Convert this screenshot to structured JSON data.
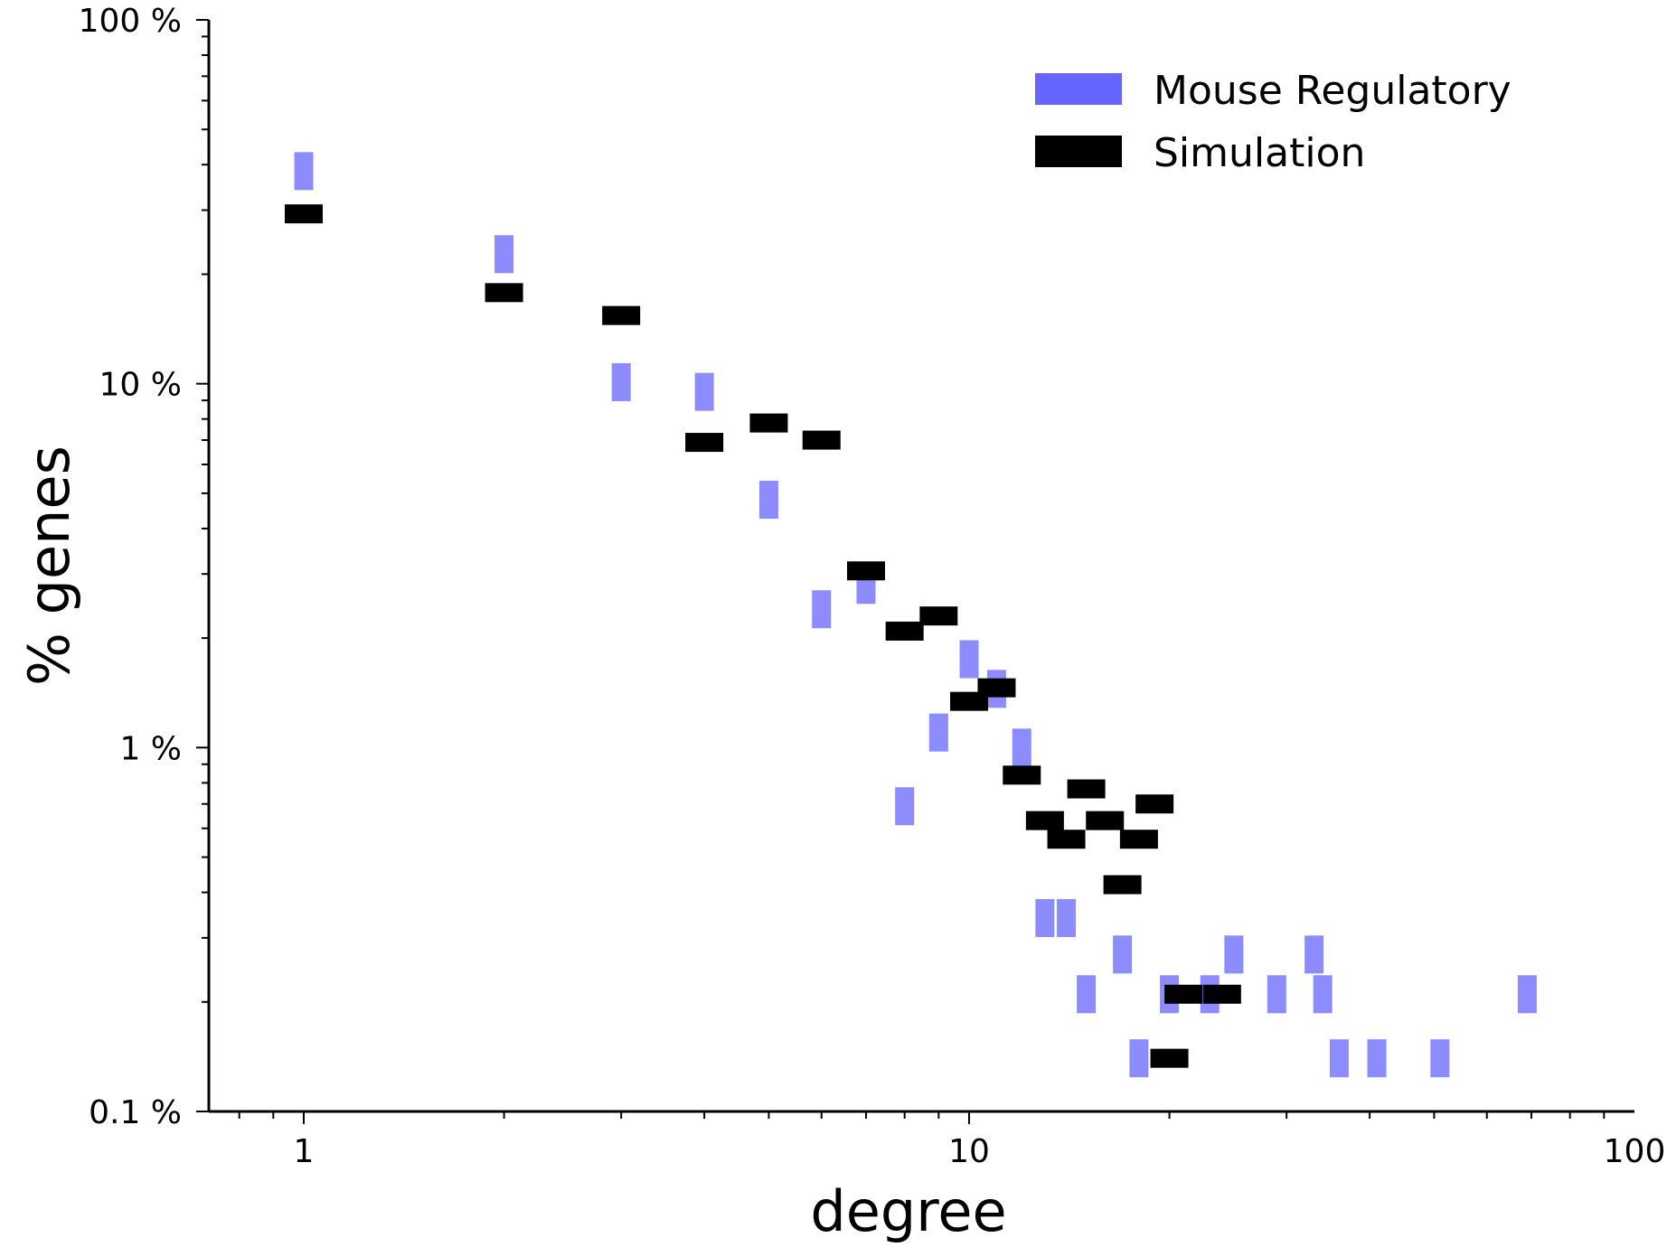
{
  "chart_data": {
    "type": "scatter",
    "title": "",
    "xlabel": "degree",
    "ylabel": "% genes",
    "xscale": "log",
    "yscale": "log",
    "xlim": [
      0.72,
      100
    ],
    "ylim": [
      0.1,
      100
    ],
    "grid": false,
    "legend_position": "top-right",
    "x_ticks": [
      {
        "value": 1,
        "label": "1"
      },
      {
        "value": 10,
        "label": "10"
      },
      {
        "value": 100,
        "label": "100"
      }
    ],
    "y_ticks": [
      {
        "value": 0.1,
        "label": "0.1 %"
      },
      {
        "value": 1,
        "label": "1 %"
      },
      {
        "value": 10,
        "label": "10 %"
      },
      {
        "value": 100,
        "label": "100 %"
      }
    ],
    "series": [
      {
        "name": "Mouse Regulatory",
        "color": "#6666ff",
        "marker": "vertical-bar",
        "points": [
          {
            "x": 1,
            "y": 38.4
          },
          {
            "x": 2,
            "y": 22.7
          },
          {
            "x": 3,
            "y": 10.1
          },
          {
            "x": 4,
            "y": 9.5
          },
          {
            "x": 5,
            "y": 4.8
          },
          {
            "x": 6,
            "y": 2.4
          },
          {
            "x": 7,
            "y": 2.8
          },
          {
            "x": 8,
            "y": 0.69
          },
          {
            "x": 9,
            "y": 1.1
          },
          {
            "x": 10,
            "y": 1.75
          },
          {
            "x": 11,
            "y": 1.45
          },
          {
            "x": 12,
            "y": 1.0
          },
          {
            "x": 13,
            "y": 0.34
          },
          {
            "x": 14,
            "y": 0.34
          },
          {
            "x": 15,
            "y": 0.21
          },
          {
            "x": 17,
            "y": 0.27
          },
          {
            "x": 18,
            "y": 0.14
          },
          {
            "x": 20,
            "y": 0.21
          },
          {
            "x": 23,
            "y": 0.21
          },
          {
            "x": 25,
            "y": 0.27
          },
          {
            "x": 29,
            "y": 0.21
          },
          {
            "x": 33,
            "y": 0.27
          },
          {
            "x": 34,
            "y": 0.21
          },
          {
            "x": 36,
            "y": 0.14
          },
          {
            "x": 41,
            "y": 0.14
          },
          {
            "x": 51,
            "y": 0.14
          },
          {
            "x": 69,
            "y": 0.21
          }
        ]
      },
      {
        "name": "Simulation",
        "color": "#000000",
        "marker": "horizontal-bar",
        "points": [
          {
            "x": 1,
            "y": 29.3
          },
          {
            "x": 2,
            "y": 17.8
          },
          {
            "x": 3,
            "y": 15.4
          },
          {
            "x": 4,
            "y": 6.9
          },
          {
            "x": 5,
            "y": 7.8
          },
          {
            "x": 6,
            "y": 7.0
          },
          {
            "x": 7,
            "y": 3.06
          },
          {
            "x": 8,
            "y": 2.09
          },
          {
            "x": 9,
            "y": 2.3
          },
          {
            "x": 10,
            "y": 1.34
          },
          {
            "x": 11,
            "y": 1.46
          },
          {
            "x": 12,
            "y": 0.84
          },
          {
            "x": 13,
            "y": 0.63
          },
          {
            "x": 14,
            "y": 0.56
          },
          {
            "x": 15,
            "y": 0.77
          },
          {
            "x": 16,
            "y": 0.63
          },
          {
            "x": 17,
            "y": 0.42
          },
          {
            "x": 18,
            "y": 0.56
          },
          {
            "x": 19,
            "y": 0.7
          },
          {
            "x": 20,
            "y": 0.14
          },
          {
            "x": 21,
            "y": 0.21
          },
          {
            "x": 24,
            "y": 0.21
          }
        ]
      }
    ]
  }
}
